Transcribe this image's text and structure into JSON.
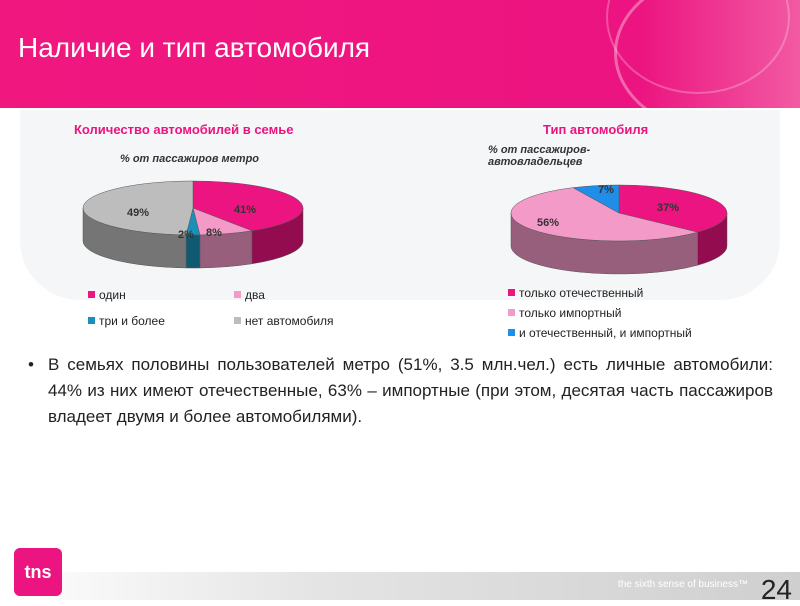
{
  "slide": {
    "title": "Наличие и тип автомобиля",
    "bullet": "В семьях половины пользователей метро (51%, 3.5 млн.чел.) есть личные автомобили: 44% из них имеют отечественные, 63% – импортные (при этом, десятая часть пассажиров владеет двумя и более автомобилями).",
    "logo_text": "tns",
    "tagline": "the sixth sense of business™",
    "page_number": "24"
  },
  "chart_data": [
    {
      "type": "pie",
      "title": "Количество автомобилей в семье",
      "subtitle": "% от пассажиров метро",
      "series": [
        {
          "name": "один",
          "value": 41,
          "label": "41%",
          "color": "#ec1480"
        },
        {
          "name": "два",
          "value": 8,
          "label": "8%",
          "color": "#f49ac8"
        },
        {
          "name": "три и более",
          "value": 2,
          "label": "2%",
          "color": "#1a8fb8"
        },
        {
          "name": "нет автомобиля",
          "value": 49,
          "label": "49%",
          "color": "#bdbdbd"
        }
      ],
      "legend_position": "bottom"
    },
    {
      "type": "pie",
      "title": "Тип автомобиля",
      "subtitle": "% от пассажиров-автовладельцев",
      "series": [
        {
          "name": "только отечественный",
          "value": 37,
          "label": "37%",
          "color": "#ec1480"
        },
        {
          "name": "только импортный",
          "value": 56,
          "label": "56%",
          "color": "#f49ac8"
        },
        {
          "name": "и отечественный, и импортный",
          "value": 7,
          "label": "7%",
          "color": "#1e8ee8"
        }
      ],
      "legend_position": "bottom"
    }
  ]
}
